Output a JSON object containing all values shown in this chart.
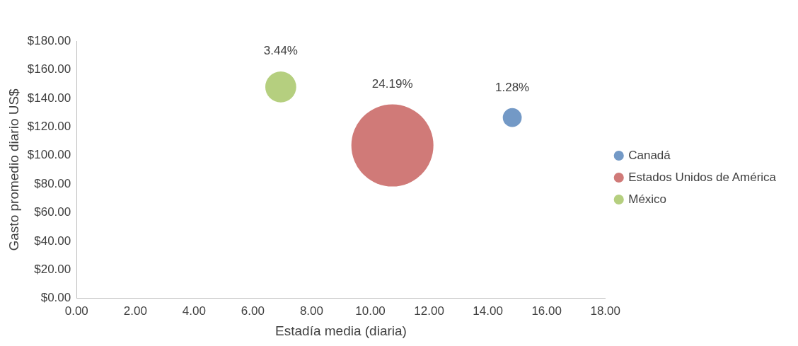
{
  "chart_data": {
    "type": "bubble",
    "xlabel": "Estadía media (diaria)",
    "ylabel": "Gasto promedio diario US$",
    "xlim": [
      0,
      18
    ],
    "xticks": [
      {
        "value": 0,
        "label": "0.00"
      },
      {
        "value": 2,
        "label": "2.00"
      },
      {
        "value": 4,
        "label": "4.00"
      },
      {
        "value": 6,
        "label": "6.00"
      },
      {
        "value": 8,
        "label": "8.00"
      },
      {
        "value": 10,
        "label": "10.00"
      },
      {
        "value": 12,
        "label": "12.00"
      },
      {
        "value": 14,
        "label": "14.00"
      },
      {
        "value": 16,
        "label": "16.00"
      },
      {
        "value": 18,
        "label": "18.00"
      }
    ],
    "ylim": [
      0,
      180
    ],
    "yticks": [
      {
        "value": 0,
        "label": "$0.00"
      },
      {
        "value": 20,
        "label": "$20.00"
      },
      {
        "value": 40,
        "label": "$40.00"
      },
      {
        "value": 60,
        "label": "$60.00"
      },
      {
        "value": 80,
        "label": "$80.00"
      },
      {
        "value": 100,
        "label": "$100.00"
      },
      {
        "value": 120,
        "label": "$120.00"
      },
      {
        "value": 140,
        "label": "$140.00"
      },
      {
        "value": 160,
        "label": "$160.00"
      },
      {
        "value": 180,
        "label": "$180.00"
      }
    ],
    "series": [
      {
        "name": "Canadá",
        "color": "#7399c6",
        "x": [
          14.83
        ],
        "values": [
          126.5
        ],
        "sizes": [
          1.28
        ],
        "value_labels": [
          "1.28%"
        ]
      },
      {
        "name": "Estados Unidos de América",
        "color": "#d07a78",
        "x": [
          10.75
        ],
        "values": [
          107
        ],
        "sizes": [
          24.19
        ],
        "value_labels": [
          "24.19%"
        ]
      },
      {
        "name": "México",
        "color": "#b5cf7f",
        "x": [
          6.95
        ],
        "values": [
          147.9
        ],
        "sizes": [
          3.44
        ],
        "value_labels": [
          "3.44%"
        ]
      }
    ],
    "legend": "right",
    "grid": false
  }
}
